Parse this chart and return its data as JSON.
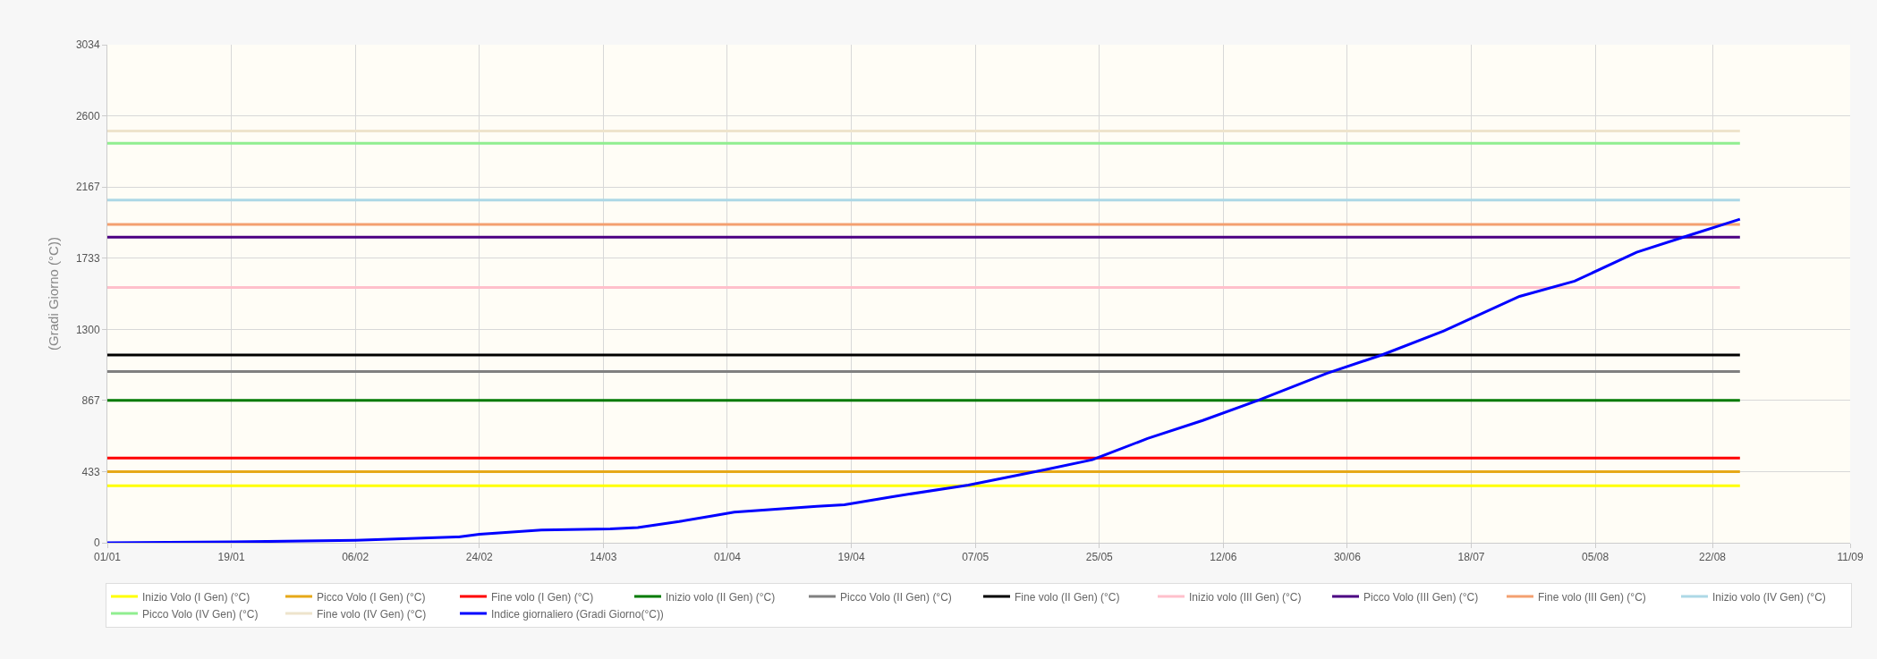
{
  "chart_data": {
    "type": "line",
    "ylabel": "(Gradi Giorno (°C))",
    "ylim": [
      0,
      3034
    ],
    "yticks": [
      0,
      433,
      867,
      1300,
      1733,
      2167,
      2600,
      3034
    ],
    "xlim": [
      "--01-01",
      "--09-11"
    ],
    "xticks": [
      {
        "value": "--01-01",
        "label": "01/01"
      },
      {
        "value": "--01-19",
        "label": "19/01"
      },
      {
        "value": "--02-06",
        "label": "06/02"
      },
      {
        "value": "--02-24",
        "label": "24/02"
      },
      {
        "value": "--03-14",
        "label": "14/03"
      },
      {
        "value": "--04-01",
        "label": "01/04"
      },
      {
        "value": "--04-19",
        "label": "19/04"
      },
      {
        "value": "--05-07",
        "label": "07/05"
      },
      {
        "value": "--05-25",
        "label": "25/05"
      },
      {
        "value": "--06-12",
        "label": "12/06"
      },
      {
        "value": "--06-30",
        "label": "30/06"
      },
      {
        "value": "--07-18",
        "label": "18/07"
      },
      {
        "value": "--08-05",
        "label": "05/08"
      },
      {
        "value": "--08-22",
        "label": "22/08"
      },
      {
        "value": "--09-11",
        "label": "11/09"
      }
    ],
    "grid": true,
    "legend": "bottom",
    "marker": "none",
    "line_style": "solid",
    "series": [
      {
        "name": "Inizio Volo (I Gen) (°C)",
        "color": "#ffff00",
        "x": [
          "--01-01",
          "--08-26"
        ],
        "values": [
          347,
          347
        ]
      },
      {
        "name": "Picco Volo (I Gen) (°C)",
        "color": "#e6a817",
        "x": [
          "--01-01",
          "--08-26"
        ],
        "values": [
          433,
          433
        ]
      },
      {
        "name": "Fine volo (I Gen) (°C)",
        "color": "#ff0000",
        "x": [
          "--01-01",
          "--08-26"
        ],
        "values": [
          516,
          516
        ]
      },
      {
        "name": "Inizio volo (II Gen) (°C)",
        "color": "#007a00",
        "x": [
          "--01-01",
          "--08-26"
        ],
        "values": [
          867,
          867
        ]
      },
      {
        "name": "Picco Volo (II Gen) (°C)",
        "color": "#808080",
        "x": [
          "--01-01",
          "--08-26"
        ],
        "values": [
          1043,
          1043
        ]
      },
      {
        "name": "Fine volo (II Gen) (°C)",
        "color": "#000000",
        "x": [
          "--01-01",
          "--08-26"
        ],
        "values": [
          1144,
          1144
        ]
      },
      {
        "name": "Inizio volo (III Gen) (°C)",
        "color": "#ffc0cb",
        "x": [
          "--01-01",
          "--08-26"
        ],
        "values": [
          1555,
          1555
        ]
      },
      {
        "name": "Picco Volo (III Gen) (°C)",
        "color": "#4b0082",
        "x": [
          "--01-01",
          "--08-26"
        ],
        "values": [
          1862,
          1862
        ]
      },
      {
        "name": "Fine volo (III Gen) (°C)",
        "color": "#f4a070",
        "x": [
          "--01-01",
          "--08-26"
        ],
        "values": [
          1939,
          1939
        ]
      },
      {
        "name": "Inizio volo (IV Gen) (°C)",
        "color": "#add8e6",
        "x": [
          "--01-01",
          "--08-26"
        ],
        "values": [
          2087,
          2087
        ]
      },
      {
        "name": "Picco Volo (IV Gen) (°C)",
        "color": "#90ee90",
        "x": [
          "--01-01",
          "--08-26"
        ],
        "values": [
          2434,
          2434
        ]
      },
      {
        "name": "Fine volo (IV Gen) (°C)",
        "color": "#eee4cc",
        "x": [
          "--01-01",
          "--08-26"
        ],
        "values": [
          2509,
          2509
        ]
      },
      {
        "name": "Indice giornaliero (Gradi Giorno(°C))",
        "color": "#0000ff",
        "x": [
          "--01-01",
          "--01-19",
          "--02-06",
          "--02-21",
          "--02-24",
          "--03-05",
          "--03-15",
          "--03-19",
          "--03-25",
          "--03-30",
          "--04-02",
          "--04-14",
          "--04-18",
          "--04-25",
          "--05-06",
          "--05-17",
          "--05-24",
          "--06-01",
          "--06-09",
          "--06-17",
          "--06-27",
          "--07-05",
          "--07-14",
          "--07-25",
          "--08-02",
          "--08-11",
          "--08-19",
          "--08-26"
        ],
        "values": [
          0,
          5,
          15,
          36,
          52,
          78,
          85,
          93,
          129,
          165,
          186,
          222,
          232,
          281,
          351,
          444,
          506,
          635,
          745,
          867,
          1032,
          1144,
          1290,
          1501,
          1594,
          1770,
          1878,
          1971
        ]
      }
    ]
  }
}
